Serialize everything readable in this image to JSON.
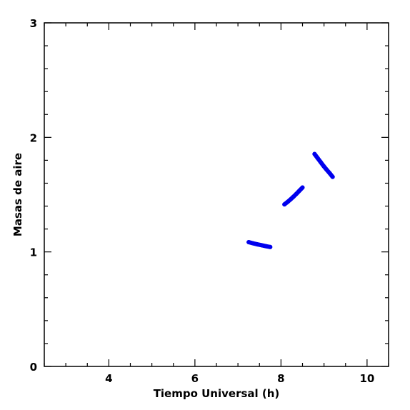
{
  "chart_data": {
    "type": "scatter",
    "title": "",
    "xlabel": "Tiempo Universal (h)",
    "ylabel": "Masas de aire",
    "xlim": [
      2.5,
      10.5
    ],
    "ylim": [
      0,
      3
    ],
    "x_ticks": [
      4,
      6,
      8,
      10
    ],
    "x_tick_labels": [
      "4",
      "6",
      "8",
      "10"
    ],
    "y_ticks": [
      0,
      1,
      2,
      3
    ],
    "y_tick_labels": [
      "0",
      "1",
      "2",
      "3"
    ],
    "x_minor_step": 0.5,
    "y_minor_step": 0.2,
    "grid": false,
    "legend": "none",
    "color": "#0000ee",
    "series": [
      {
        "x": [
          7.25,
          7.35,
          7.45,
          7.55,
          7.65,
          7.75
        ],
        "y": [
          1.085,
          1.075,
          1.066,
          1.058,
          1.05,
          1.043
        ]
      },
      {
        "x": [
          8.08,
          8.15,
          8.22,
          8.29,
          8.36,
          8.43,
          8.5
        ],
        "y": [
          1.415,
          1.435,
          1.458,
          1.482,
          1.508,
          1.535,
          1.562
        ]
      },
      {
        "x": [
          8.78,
          8.85,
          8.92,
          8.99,
          9.06,
          9.13,
          9.2
        ],
        "y": [
          1.855,
          1.82,
          1.785,
          1.75,
          1.718,
          1.688,
          1.655
        ]
      }
    ]
  }
}
